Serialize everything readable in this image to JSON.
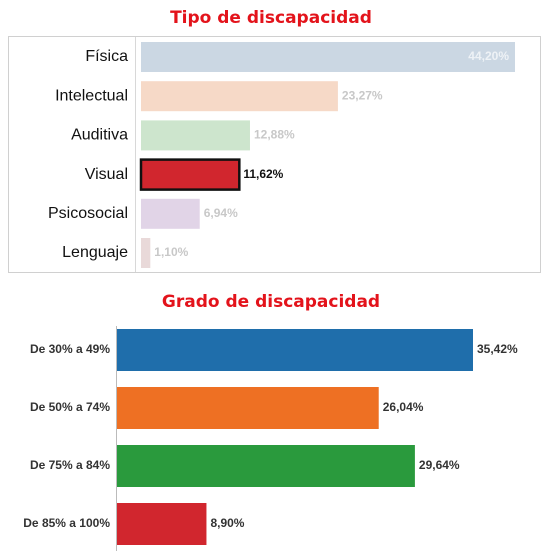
{
  "chart_data": [
    {
      "type": "bar",
      "orientation": "horizontal",
      "title": "Tipo de discapacidad",
      "categories": [
        "Física",
        "Intelectual",
        "Auditiva",
        "Visual",
        "Psicosocial",
        "Lenguaje"
      ],
      "values": [
        44.2,
        23.27,
        12.88,
        11.62,
        6.94,
        1.1
      ],
      "value_labels": [
        "44,20%",
        "23,27%",
        "12,88%",
        "11,62%",
        "6,94%",
        "1,10%"
      ],
      "colors": [
        "#cbd7e3",
        "#f6d9c7",
        "#cde5cd",
        "#d1262e",
        "#e1d4e7",
        "#e9d9d9"
      ],
      "highlight": 3
    },
    {
      "type": "bar",
      "orientation": "horizontal",
      "title": "Grado de discapacidad",
      "categories": [
        "De 30% a 49%",
        "De 50% a 74%",
        "De 75% a 84%",
        "De 85% a 100%"
      ],
      "values": [
        35.42,
        26.04,
        29.64,
        8.9
      ],
      "value_labels": [
        "35,42%",
        "26,04%",
        "29,64%",
        "8,90%"
      ],
      "colors": [
        "#1f6eab",
        "#ee7023",
        "#2a9a3d",
        "#d1262e"
      ]
    }
  ]
}
